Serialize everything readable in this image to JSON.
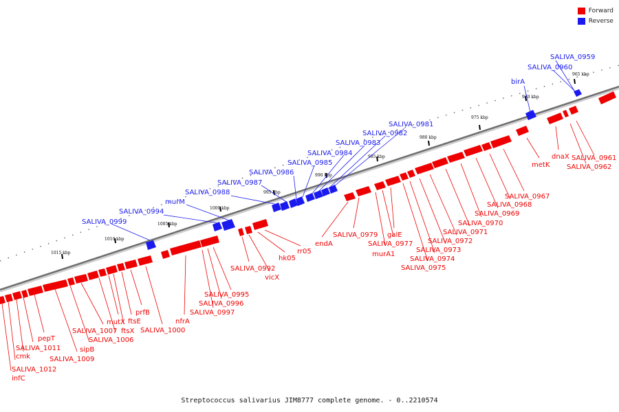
{
  "legend": [
    {
      "label": "Forward",
      "color": "#ee0000"
    },
    {
      "label": "Reverse",
      "color": "#1a1aee"
    }
  ],
  "caption": "Streptococcus salivarius JIM8777 complete genome. - 0..2210574",
  "ticks": [
    {
      "label": "965 kbp"
    },
    {
      "label": "970 kbp"
    },
    {
      "label": "975 kbp"
    },
    {
      "label": "980 kbp"
    },
    {
      "label": "985 kbp"
    },
    {
      "label": "990 kbp"
    },
    {
      "label": "995 kbp"
    },
    {
      "label": "1000 kbp"
    },
    {
      "label": "1005 kbp"
    },
    {
      "label": "1010 kbp"
    },
    {
      "label": "1015 kbp"
    }
  ],
  "reverse_genes": [
    "SALIVA_0959",
    "SALIVA_0960",
    "birA",
    "SALIVA_0981",
    "SALIVA_0982",
    "SALIVA_0983",
    "SALIVA_0984",
    "SALIVA_0985",
    "SALIVA_0986",
    "SALIVA_0987",
    "SALIVA_0988",
    "murM",
    "SALIVA_0994",
    "SALIVA_0999"
  ],
  "forward_genes": [
    "SALIVA_0961",
    "SALIVA_0962",
    "dnaX",
    "metK",
    "SALIVA_0967",
    "SALIVA_0968",
    "SALIVA_0969",
    "SALIVA_0970",
    "SALIVA_0971",
    "SALIVA_0972",
    "SALIVA_0973",
    "SALIVA_0974",
    "SALIVA_0975",
    "galE",
    "SALIVA_0977",
    "murA1",
    "SALIVA_0979",
    "endA",
    "rr05",
    "hk05",
    "vicX",
    "SALIVA_0992",
    "SALIVA_0995",
    "SALIVA_0996",
    "SALIVA_0997",
    "nfrA",
    "SALIVA_1000",
    "prfB",
    "ftsE",
    "ftsX",
    "mutX",
    "SALIVA_1006",
    "SALIVA_1007",
    "sipB",
    "SALIVA_1009",
    "pepT",
    "SALIVA_1011",
    "cmk",
    "SALIVA_1012",
    "infC"
  ]
}
